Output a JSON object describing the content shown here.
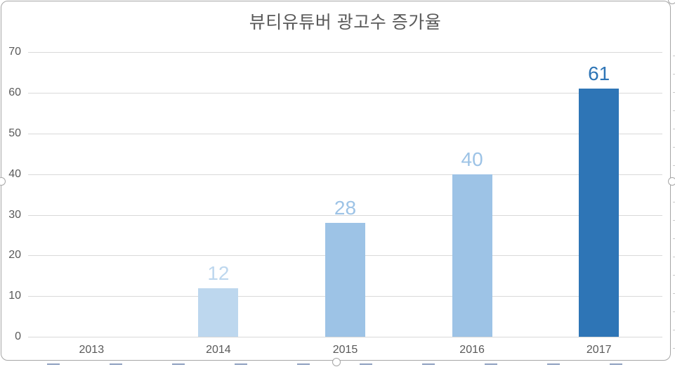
{
  "chart_data": {
    "type": "bar",
    "title": "뷰티유튜버 광고수 증가율",
    "categories": [
      "2013",
      "2014",
      "2015",
      "2016",
      "2017"
    ],
    "values": [
      0,
      12,
      28,
      40,
      61
    ],
    "data_labels": [
      "",
      "12",
      "28",
      "40",
      "61"
    ],
    "bar_colors": [
      "#BDD7EE",
      "#BDD7EE",
      "#9DC3E6",
      "#9DC3E6",
      "#2E75B6"
    ],
    "label_colors": [
      "#BDD7EE",
      "#BDD7EE",
      "#9DC3E6",
      "#9DC3E6",
      "#2E75B6"
    ],
    "xlabel": "",
    "ylabel": "",
    "ylim": [
      0,
      70
    ],
    "yticks": [
      0,
      10,
      20,
      30,
      40,
      50,
      60,
      70
    ],
    "grid": true,
    "legend": "none"
  },
  "colors": {
    "title_text": "#595959",
    "axis_text": "#595959",
    "gridline": "#D9D9D9",
    "frame_border": "#A6A6A6",
    "background": "#FFFFFF"
  }
}
